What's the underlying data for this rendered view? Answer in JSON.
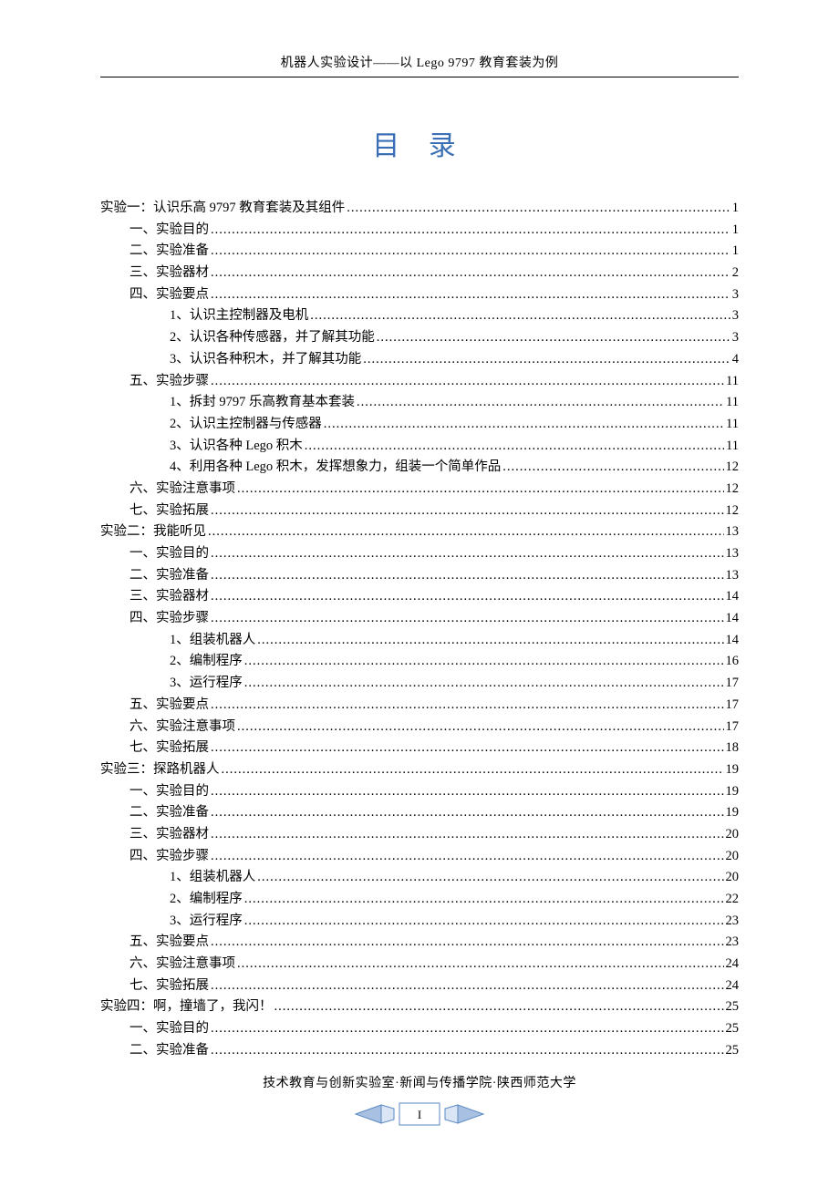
{
  "header": "机器人实验设计——以 Lego 9797 教育套装为例",
  "title": "目 录",
  "footer": "技术教育与创新实验室·新闻与传播学院·陕西师范大学",
  "page_number": "I",
  "colors": {
    "title_color": "#3b6fb5",
    "badge_border": "#5b8ac2",
    "badge_fill_light": "#dbe6f4",
    "badge_fill_side": "#a8c1e3",
    "text": "#000000",
    "bg": "#ffffff"
  },
  "toc": [
    {
      "level": 0,
      "label": "实验一：认识乐高 9797 教育套装及其组件",
      "page": "1"
    },
    {
      "level": 1,
      "label": "一、实验目的",
      "page": "1"
    },
    {
      "level": 1,
      "label": "二、实验准备",
      "page": "1"
    },
    {
      "level": 1,
      "label": "三、实验器材",
      "page": "2"
    },
    {
      "level": 1,
      "label": "四、实验要点",
      "page": "3"
    },
    {
      "level": 2,
      "label": "1、认识主控制器及电机",
      "page": "3"
    },
    {
      "level": 2,
      "label": "2、认识各种传感器，并了解其功能",
      "page": "3"
    },
    {
      "level": 2,
      "label": "3、认识各种积木，并了解其功能",
      "page": "4"
    },
    {
      "level": 1,
      "label": "五、实验步骤",
      "page": "11"
    },
    {
      "level": 2,
      "label": "1、拆封 9797 乐高教育基本套装",
      "page": "11"
    },
    {
      "level": 2,
      "label": "2、认识主控制器与传感器",
      "page": "11"
    },
    {
      "level": 2,
      "label": "3、认识各种 Lego 积木 ",
      "page": "11"
    },
    {
      "level": 2,
      "label": "4、利用各种 Lego 积木，发挥想象力，组装一个简单作品 ",
      "page": "12"
    },
    {
      "level": 1,
      "label": "六、实验注意事项",
      "page": "12"
    },
    {
      "level": 1,
      "label": "七、实验拓展",
      "page": "12"
    },
    {
      "level": 0,
      "label": "实验二：我能听见",
      "page": "13"
    },
    {
      "level": 1,
      "label": "一、实验目的",
      "page": "13"
    },
    {
      "level": 1,
      "label": "二、实验准备",
      "page": "13"
    },
    {
      "level": 1,
      "label": "三、实验器材",
      "page": "14"
    },
    {
      "level": 1,
      "label": "四、实验步骤",
      "page": "14"
    },
    {
      "level": 2,
      "label": "1、组装机器人",
      "page": "14"
    },
    {
      "level": 2,
      "label": "2、编制程序",
      "page": "16"
    },
    {
      "level": 2,
      "label": "3、运行程序",
      "page": "17"
    },
    {
      "level": 1,
      "label": "五、实验要点",
      "page": "17"
    },
    {
      "level": 1,
      "label": "六、实验注意事项",
      "page": "17"
    },
    {
      "level": 1,
      "label": "七、实验拓展",
      "page": "18"
    },
    {
      "level": 0,
      "label": "实验三：探路机器人",
      "page": "19"
    },
    {
      "level": 1,
      "label": "一、实验目的",
      "page": "19"
    },
    {
      "level": 1,
      "label": "二、实验准备",
      "page": "19"
    },
    {
      "level": 1,
      "label": "三、实验器材",
      "page": "20"
    },
    {
      "level": 1,
      "label": "四、实验步骤",
      "page": "20"
    },
    {
      "level": 2,
      "label": "1、组装机器人",
      "page": "20"
    },
    {
      "level": 2,
      "label": "2、编制程序",
      "page": "22"
    },
    {
      "level": 2,
      "label": "3、运行程序",
      "page": "23"
    },
    {
      "level": 1,
      "label": "五、实验要点",
      "page": "23"
    },
    {
      "level": 1,
      "label": "六、实验注意事项",
      "page": "24"
    },
    {
      "level": 1,
      "label": "七、实验拓展",
      "page": "24"
    },
    {
      "level": 0,
      "label": "实验四：啊，撞墙了，我闪！",
      "page": "25"
    },
    {
      "level": 1,
      "label": "一、实验目的",
      "page": "25"
    },
    {
      "level": 1,
      "label": "二、实验准备",
      "page": "25"
    }
  ]
}
